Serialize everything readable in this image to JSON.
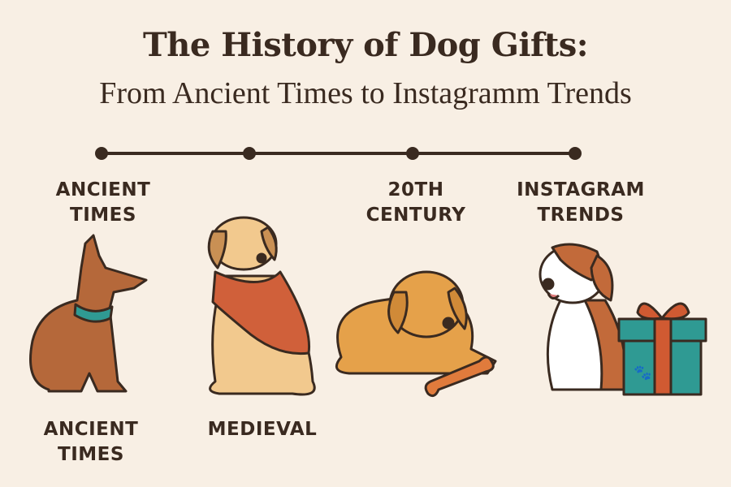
{
  "title": "The History of Dog Gifts:",
  "subtitle": "From Ancient Times to Instagramm Trends",
  "timeline": {
    "labels": [
      {
        "line1": "ANCIENT",
        "line2": "TIMES"
      },
      {
        "line1": "20TH",
        "line2": "CENTURY"
      },
      {
        "line1": "INSTAGRAM",
        "line2": "TRENDS"
      }
    ],
    "bottom_labels": [
      {
        "line1": "ANCIENT",
        "line2": "TIMES"
      },
      {
        "line1": "MEDIEVAL",
        "line2": ""
      }
    ]
  },
  "colors": {
    "background": "#f8efe4",
    "text": "#3a2a20",
    "ancient_dog": "#b5683a",
    "cape": "#d0603a",
    "golden_dog": "#e5a14a",
    "gift_box": "#2f9a93",
    "ribbon": "#d05a32"
  }
}
